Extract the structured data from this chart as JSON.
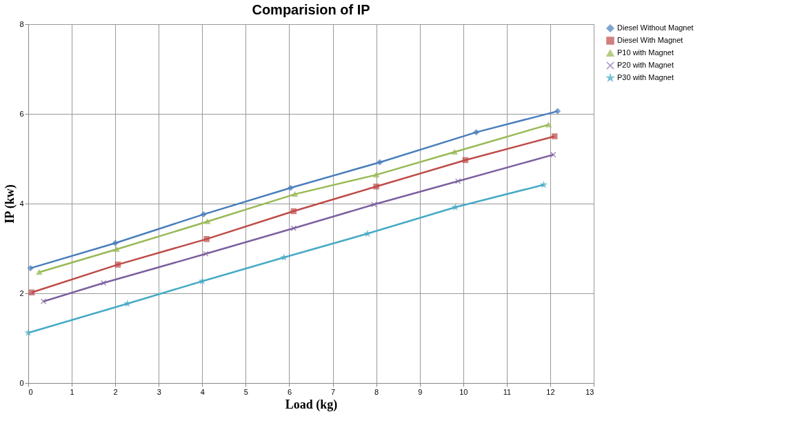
{
  "chart_data": {
    "type": "line",
    "title": "Comparision of  IP",
    "xlabel": "Load (kg)",
    "ylabel": "IP  (kw)",
    "xlim": [
      0,
      13
    ],
    "xticks": [
      0,
      1,
      2,
      3,
      4,
      5,
      6,
      7,
      8,
      9,
      10,
      11,
      12,
      13
    ],
    "ylim": [
      0,
      8
    ],
    "yticks": [
      0,
      2,
      4,
      6,
      8
    ],
    "grid": true,
    "legend": "right",
    "series": [
      {
        "name": "Diesel Without Magnet",
        "color": "#4a7ebb",
        "marker": "diamond",
        "x": [
          0.05,
          2.0,
          4.03,
          6.03,
          8.08,
          10.3,
          12.17
        ],
        "values": [
          2.56,
          3.12,
          3.76,
          4.35,
          4.92,
          5.59,
          6.06
        ]
      },
      {
        "name": "Diesel With Magnet",
        "color": "#be4b48",
        "marker": "square",
        "x": [
          0.08,
          2.06,
          4.1,
          6.1,
          8.0,
          10.05,
          12.1
        ],
        "values": [
          2.02,
          2.64,
          3.21,
          3.83,
          4.38,
          4.97,
          5.5
        ]
      },
      {
        "name": "P10 with Magnet",
        "color": "#98b954",
        "marker": "triangle",
        "x": [
          0.25,
          2.03,
          4.12,
          6.13,
          8.0,
          9.8,
          11.96
        ],
        "values": [
          2.47,
          2.98,
          3.6,
          4.21,
          4.64,
          5.15,
          5.76
        ]
      },
      {
        "name": "P20 with Magnet",
        "color": "#7d60a0",
        "marker": "cross",
        "x": [
          0.35,
          1.73,
          4.08,
          6.1,
          7.95,
          9.88,
          12.07
        ],
        "values": [
          1.82,
          2.23,
          2.88,
          3.45,
          3.98,
          4.5,
          5.09
        ]
      },
      {
        "name": "P30 with Magnet",
        "color": "#46aac5",
        "marker": "star",
        "x": [
          0.0,
          2.28,
          4.0,
          5.88,
          7.8,
          9.82,
          11.85
        ],
        "values": [
          1.12,
          1.77,
          2.27,
          2.8,
          3.33,
          3.92,
          4.42
        ]
      }
    ]
  }
}
